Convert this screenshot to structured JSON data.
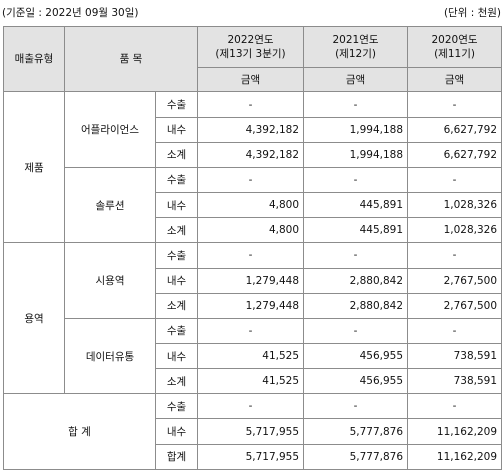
{
  "notes": {
    "basis_date": "(기준일 : 2022년 09월 30일)",
    "unit": "(단위 : 천원)"
  },
  "header": {
    "type_col": "매출유형",
    "item_col": "품 목",
    "periods": [
      {
        "year": "2022연도",
        "term": "(제13기 3분기)"
      },
      {
        "year": "2021연도",
        "term": "(제12기)"
      },
      {
        "year": "2020연도",
        "term": "(제11기)"
      }
    ],
    "amount_label": "금액"
  },
  "groups": [
    {
      "type": "제품",
      "items": [
        {
          "name": "어플라이언스",
          "rows": [
            {
              "sub": "수출",
              "values": [
                "-",
                "-",
                "-"
              ]
            },
            {
              "sub": "내수",
              "values": [
                "4,392,182",
                "1,994,188",
                "6,627,792"
              ]
            },
            {
              "sub": "소계",
              "values": [
                "4,392,182",
                "1,994,188",
                "6,627,792"
              ]
            }
          ]
        },
        {
          "name": "솔루션",
          "rows": [
            {
              "sub": "수출",
              "values": [
                "-",
                "-",
                "-"
              ]
            },
            {
              "sub": "내수",
              "values": [
                "4,800",
                "445,891",
                "1,028,326"
              ]
            },
            {
              "sub": "소계",
              "values": [
                "4,800",
                "445,891",
                "1,028,326"
              ]
            }
          ]
        }
      ]
    },
    {
      "type": "용역",
      "items": [
        {
          "name": "시용역",
          "rows": [
            {
              "sub": "수출",
              "values": [
                "-",
                "-",
                "-"
              ]
            },
            {
              "sub": "내수",
              "values": [
                "1,279,448",
                "2,880,842",
                "2,767,500"
              ]
            },
            {
              "sub": "소계",
              "values": [
                "1,279,448",
                "2,880,842",
                "2,767,500"
              ]
            }
          ]
        },
        {
          "name": "데이터유통",
          "rows": [
            {
              "sub": "수출",
              "values": [
                "-",
                "-",
                "-"
              ]
            },
            {
              "sub": "내수",
              "values": [
                "41,525",
                "456,955",
                "738,591"
              ]
            },
            {
              "sub": "소계",
              "values": [
                "41,525",
                "456,955",
                "738,591"
              ]
            }
          ]
        }
      ]
    }
  ],
  "total": {
    "label": "합 계",
    "rows": [
      {
        "sub": "수출",
        "values": [
          "-",
          "-",
          "-"
        ]
      },
      {
        "sub": "내수",
        "values": [
          "5,717,955",
          "5,777,876",
          "11,162,209"
        ]
      },
      {
        "sub": "합계",
        "values": [
          "5,717,955",
          "5,777,876",
          "11,162,209"
        ]
      }
    ]
  }
}
